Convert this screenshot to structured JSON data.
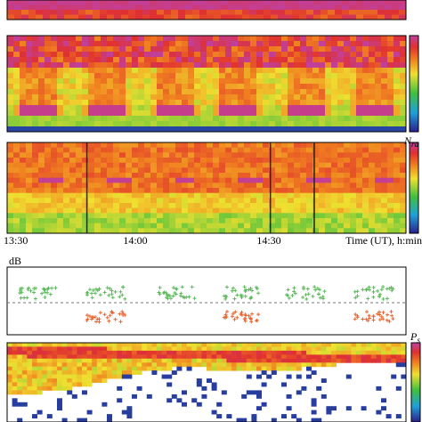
{
  "time_labels": [
    "13:30",
    "14:00",
    "14:30"
  ],
  "time_axis_label": "Time (UT), h:min",
  "db_label": "dB",
  "nra_label": {
    "symbol": "N",
    "sub": "ra"
  },
  "ps_label": {
    "symbol": "P",
    "sub": "s"
  }
}
